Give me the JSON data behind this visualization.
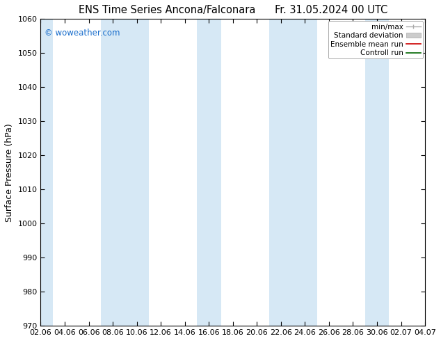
{
  "title_left": "ENS Time Series Ancona/Falconara",
  "title_right": "Fr. 31.05.2024 00 UTC",
  "ylabel": "Surface Pressure (hPa)",
  "ylim": [
    970,
    1060
  ],
  "yticks": [
    970,
    980,
    990,
    1000,
    1010,
    1020,
    1030,
    1040,
    1050,
    1060
  ],
  "xlabels": [
    "02.06",
    "04.06",
    "06.06",
    "08.06",
    "10.06",
    "12.06",
    "14.06",
    "16.06",
    "18.06",
    "20.06",
    "22.06",
    "24.06",
    "26.06",
    "28.06",
    "30.06",
    "02.07",
    "04.07"
  ],
  "band_color": "#d6e8f5",
  "background_color": "#ffffff",
  "watermark": "© woweather.com",
  "watermark_color": "#1a6ecc",
  "legend_items": [
    {
      "label": "min/max",
      "color": "#aaaaaa",
      "lw": 1.0,
      "style": "minmax"
    },
    {
      "label": "Standard deviation",
      "color": "#cccccc",
      "lw": 8,
      "style": "band"
    },
    {
      "label": "Ensemble mean run",
      "color": "#cc0000",
      "lw": 1.2,
      "style": "line"
    },
    {
      "label": "Controll run",
      "color": "#006600",
      "lw": 1.2,
      "style": "line"
    }
  ],
  "title_fontsize": 10.5,
  "axis_label_fontsize": 9,
  "tick_fontsize": 8,
  "legend_fontsize": 7.5,
  "fig_width": 6.34,
  "fig_height": 4.9,
  "dpi": 100,
  "blue_band_indices": [
    0,
    3,
    4,
    7,
    10,
    11,
    14
  ]
}
